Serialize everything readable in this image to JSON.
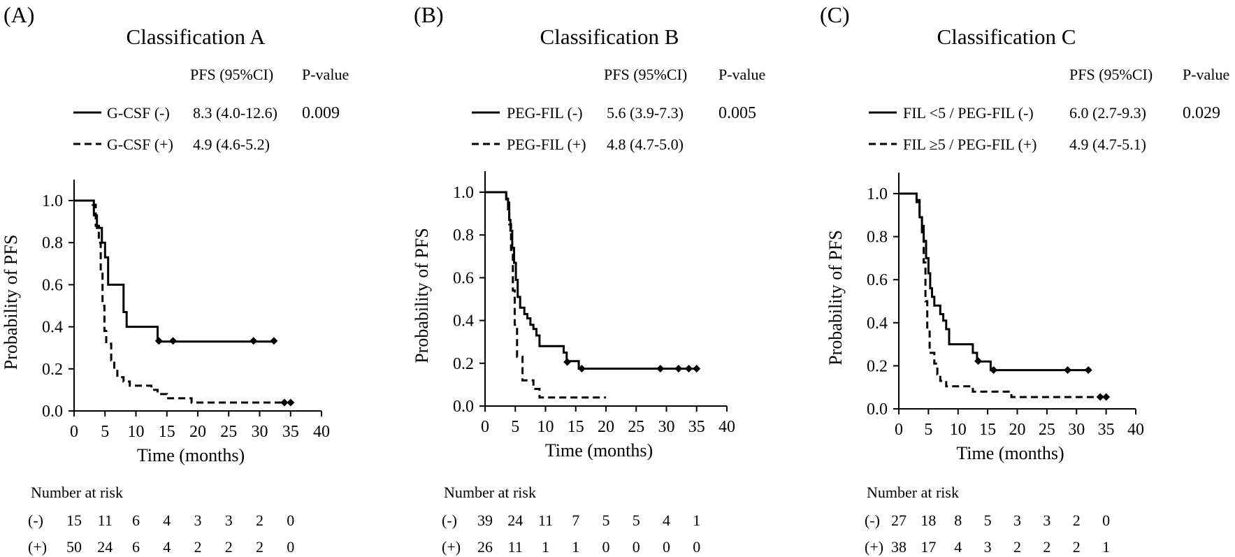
{
  "panels": [
    {
      "panel_label": "(A)",
      "title": "Classification A",
      "header_pfs": "PFS (95%CI)",
      "header_p": "P-value",
      "legend_rows": [
        {
          "label": "G-CSF (-)",
          "pfs": "8.3 (4.0-12.6)",
          "p": "0.009",
          "style": "solid"
        },
        {
          "label": "G-CSF (+)",
          "pfs": "4.9 (4.6-5.2)",
          "p": "",
          "style": "dashed"
        }
      ],
      "risk": {
        "title": "Number at risk",
        "rows": [
          {
            "label": "(-)",
            "values": [
              "15",
              "11",
              "6",
              "4",
              "3",
              "3",
              "2",
              "0"
            ]
          },
          {
            "label": "(+)",
            "values": [
              "50",
              "24",
              "6",
              "4",
              "2",
              "2",
              "2",
              "0"
            ]
          }
        ]
      }
    },
    {
      "panel_label": "(B)",
      "title": "Classification B",
      "header_pfs": "PFS (95%CI)",
      "header_p": "P-value",
      "legend_rows": [
        {
          "label": "PEG-FIL (-)",
          "pfs": "5.6 (3.9-7.3)",
          "p": "0.005",
          "style": "solid"
        },
        {
          "label": "PEG-FIL (+)",
          "pfs": "4.8 (4.7-5.0)",
          "p": "",
          "style": "dashed"
        }
      ],
      "risk": {
        "title": "Number at risk",
        "rows": [
          {
            "label": "(-)",
            "values": [
              "39",
              "24",
              "11",
              "7",
              "5",
              "5",
              "4",
              "1"
            ]
          },
          {
            "label": "(+)",
            "values": [
              "26",
              "11",
              "1",
              "1",
              "0",
              "0",
              "0",
              "0"
            ]
          }
        ]
      }
    },
    {
      "panel_label": "(C)",
      "title": "Classification C",
      "header_pfs": "PFS (95%CI)",
      "header_p": "P-value",
      "legend_rows": [
        {
          "label": "FIL <5 / PEG-FIL (-)",
          "pfs": "6.0 (2.7-9.3)",
          "p": "0.029",
          "style": "solid"
        },
        {
          "label": "FIL ≥5 / PEG-FIL (+)",
          "pfs": "4.9 (4.7-5.1)",
          "p": "",
          "style": "dashed"
        }
      ],
      "risk": {
        "title": "Number at risk",
        "rows": [
          {
            "label": "(-)",
            "values": [
              "27",
              "18",
              "8",
              "5",
              "3",
              "3",
              "2",
              "0"
            ]
          },
          {
            "label": "(+)",
            "values": [
              "38",
              "17",
              "4",
              "3",
              "2",
              "2",
              "2",
              "1"
            ]
          }
        ]
      }
    }
  ],
  "chart_data": [
    {
      "type": "line",
      "title": "Classification A",
      "xlabel": "Time (months)",
      "ylabel": "Probability of PFS",
      "xlim": [
        0,
        40
      ],
      "ylim": [
        0,
        1.0
      ],
      "x_ticks": [
        "0",
        "5",
        "10",
        "15",
        "20",
        "25",
        "30",
        "35",
        "40"
      ],
      "y_ticks": [
        "0.0",
        "0.2",
        "0.4",
        "0.6",
        "0.8",
        "1.0"
      ],
      "grid": false,
      "series": [
        {
          "name": "G-CSF (-)",
          "style": "solid",
          "points": [
            [
              0,
              1.0
            ],
            [
              3.2,
              1.0
            ],
            [
              3.2,
              0.93
            ],
            [
              3.7,
              0.93
            ],
            [
              3.7,
              0.87
            ],
            [
              4.5,
              0.87
            ],
            [
              4.5,
              0.8
            ],
            [
              5.0,
              0.8
            ],
            [
              5.0,
              0.73
            ],
            [
              5.5,
              0.73
            ],
            [
              5.5,
              0.6
            ],
            [
              8.0,
              0.6
            ],
            [
              8.0,
              0.47
            ],
            [
              8.5,
              0.47
            ],
            [
              8.5,
              0.4
            ],
            [
              13.5,
              0.4
            ],
            [
              13.5,
              0.33
            ],
            [
              32.3,
              0.33
            ]
          ],
          "censored": [
            [
              13.7,
              0.333
            ],
            [
              16.0,
              0.333
            ],
            [
              29.0,
              0.333
            ],
            [
              32.3,
              0.333
            ]
          ]
        },
        {
          "name": "G-CSF (+)",
          "style": "dashed",
          "points": [
            [
              0,
              1.0
            ],
            [
              3.0,
              1.0
            ],
            [
              3.0,
              0.98
            ],
            [
              3.5,
              0.98
            ],
            [
              3.5,
              0.88
            ],
            [
              4.0,
              0.88
            ],
            [
              4.0,
              0.8
            ],
            [
              4.3,
              0.8
            ],
            [
              4.3,
              0.66
            ],
            [
              4.6,
              0.66
            ],
            [
              4.6,
              0.5
            ],
            [
              4.9,
              0.5
            ],
            [
              4.9,
              0.38
            ],
            [
              5.2,
              0.38
            ],
            [
              5.2,
              0.32
            ],
            [
              6.0,
              0.32
            ],
            [
              6.0,
              0.24
            ],
            [
              6.5,
              0.24
            ],
            [
              6.5,
              0.2
            ],
            [
              7.0,
              0.2
            ],
            [
              7.0,
              0.16
            ],
            [
              8.0,
              0.16
            ],
            [
              8.0,
              0.14
            ],
            [
              9.0,
              0.14
            ],
            [
              9.0,
              0.12
            ],
            [
              12.5,
              0.12
            ],
            [
              12.5,
              0.1
            ],
            [
              13.5,
              0.1
            ],
            [
              13.5,
              0.08
            ],
            [
              15.0,
              0.08
            ],
            [
              15.0,
              0.06
            ],
            [
              19.0,
              0.06
            ],
            [
              19.0,
              0.04
            ],
            [
              34.0,
              0.04
            ]
          ],
          "censored": [
            [
              34.0,
              0.04
            ],
            [
              35.0,
              0.04
            ]
          ]
        }
      ]
    },
    {
      "type": "line",
      "title": "Classification B",
      "xlabel": "Time (months)",
      "ylabel": "Probability of PFS",
      "xlim": [
        0,
        40
      ],
      "ylim": [
        0,
        1.0
      ],
      "x_ticks": [
        "0",
        "5",
        "10",
        "15",
        "20",
        "25",
        "30",
        "35",
        "40"
      ],
      "y_ticks": [
        "0.0",
        "0.2",
        "0.4",
        "0.6",
        "0.8",
        "1.0"
      ],
      "grid": false,
      "series": [
        {
          "name": "PEG-FIL (-)",
          "style": "solid",
          "points": [
            [
              0,
              1.0
            ],
            [
              3.5,
              1.0
            ],
            [
              3.5,
              0.97
            ],
            [
              3.8,
              0.97
            ],
            [
              3.8,
              0.92
            ],
            [
              4.0,
              0.92
            ],
            [
              4.0,
              0.87
            ],
            [
              4.2,
              0.87
            ],
            [
              4.2,
              0.82
            ],
            [
              4.5,
              0.82
            ],
            [
              4.5,
              0.74
            ],
            [
              4.8,
              0.74
            ],
            [
              4.8,
              0.67
            ],
            [
              5.1,
              0.67
            ],
            [
              5.1,
              0.59
            ],
            [
              5.4,
              0.59
            ],
            [
              5.4,
              0.51
            ],
            [
              5.8,
              0.51
            ],
            [
              5.8,
              0.46
            ],
            [
              6.5,
              0.46
            ],
            [
              6.5,
              0.43
            ],
            [
              7.0,
              0.43
            ],
            [
              7.0,
              0.41
            ],
            [
              7.5,
              0.41
            ],
            [
              7.5,
              0.38
            ],
            [
              8.0,
              0.38
            ],
            [
              8.0,
              0.36
            ],
            [
              8.5,
              0.36
            ],
            [
              8.5,
              0.33
            ],
            [
              9.0,
              0.33
            ],
            [
              9.0,
              0.28
            ],
            [
              13.0,
              0.28
            ],
            [
              13.0,
              0.25
            ],
            [
              13.5,
              0.25
            ],
            [
              13.5,
              0.21
            ],
            [
              15.5,
              0.21
            ],
            [
              15.5,
              0.175
            ],
            [
              35.0,
              0.175
            ]
          ],
          "censored": [
            [
              13.6,
              0.206
            ],
            [
              16.0,
              0.175
            ],
            [
              29.0,
              0.175
            ],
            [
              32.0,
              0.175
            ],
            [
              33.7,
              0.175
            ],
            [
              35.0,
              0.175
            ]
          ]
        },
        {
          "name": "PEG-FIL (+)",
          "style": "dashed",
          "points": [
            [
              0,
              1.0
            ],
            [
              3.5,
              1.0
            ],
            [
              3.5,
              0.96
            ],
            [
              4.0,
              0.96
            ],
            [
              4.0,
              0.85
            ],
            [
              4.3,
              0.85
            ],
            [
              4.3,
              0.73
            ],
            [
              4.6,
              0.73
            ],
            [
              4.6,
              0.54
            ],
            [
              4.9,
              0.54
            ],
            [
              4.9,
              0.38
            ],
            [
              5.3,
              0.38
            ],
            [
              5.3,
              0.23
            ],
            [
              6.2,
              0.23
            ],
            [
              6.2,
              0.12
            ],
            [
              8.0,
              0.12
            ],
            [
              8.0,
              0.08
            ],
            [
              9.0,
              0.08
            ],
            [
              9.0,
              0.04
            ],
            [
              20.0,
              0.04
            ]
          ],
          "censored": []
        }
      ]
    },
    {
      "type": "line",
      "title": "Classification C",
      "xlabel": "Time (months)",
      "ylabel": "Probability of PFS",
      "xlim": [
        0,
        40
      ],
      "ylim": [
        0,
        1.0
      ],
      "x_ticks": [
        "0",
        "5",
        "10",
        "15",
        "20",
        "25",
        "30",
        "35",
        "40"
      ],
      "y_ticks": [
        "0.0",
        "0.2",
        "0.4",
        "0.6",
        "0.8",
        "1.0"
      ],
      "grid": false,
      "series": [
        {
          "name": "FIL <5 / PEG-FIL (-)",
          "style": "solid",
          "points": [
            [
              0,
              1.0
            ],
            [
              3.0,
              1.0
            ],
            [
              3.0,
              0.96
            ],
            [
              3.5,
              0.96
            ],
            [
              3.5,
              0.89
            ],
            [
              3.9,
              0.89
            ],
            [
              3.9,
              0.85
            ],
            [
              4.2,
              0.85
            ],
            [
              4.2,
              0.78
            ],
            [
              4.6,
              0.78
            ],
            [
              4.6,
              0.7
            ],
            [
              5.0,
              0.7
            ],
            [
              5.0,
              0.63
            ],
            [
              5.3,
              0.63
            ],
            [
              5.3,
              0.56
            ],
            [
              5.6,
              0.56
            ],
            [
              5.6,
              0.52
            ],
            [
              6.0,
              0.52
            ],
            [
              6.0,
              0.48
            ],
            [
              7.0,
              0.48
            ],
            [
              7.0,
              0.44
            ],
            [
              7.5,
              0.44
            ],
            [
              7.5,
              0.41
            ],
            [
              8.0,
              0.41
            ],
            [
              8.0,
              0.37
            ],
            [
              8.5,
              0.37
            ],
            [
              8.5,
              0.3
            ],
            [
              12.5,
              0.3
            ],
            [
              12.5,
              0.26
            ],
            [
              13.2,
              0.26
            ],
            [
              13.2,
              0.22
            ],
            [
              15.5,
              0.22
            ],
            [
              15.5,
              0.18
            ],
            [
              32.0,
              0.18
            ]
          ],
          "censored": [
            [
              13.4,
              0.222
            ],
            [
              16.0,
              0.18
            ],
            [
              28.5,
              0.18
            ],
            [
              32.0,
              0.18
            ]
          ]
        },
        {
          "name": "FIL ≥5 / PEG-FIL (+)",
          "style": "dashed",
          "points": [
            [
              0,
              1.0
            ],
            [
              3.0,
              1.0
            ],
            [
              3.0,
              0.97
            ],
            [
              3.5,
              0.97
            ],
            [
              3.5,
              0.89
            ],
            [
              3.9,
              0.89
            ],
            [
              3.9,
              0.82
            ],
            [
              4.2,
              0.82
            ],
            [
              4.2,
              0.68
            ],
            [
              4.5,
              0.68
            ],
            [
              4.5,
              0.5
            ],
            [
              4.8,
              0.5
            ],
            [
              4.8,
              0.37
            ],
            [
              5.2,
              0.37
            ],
            [
              5.2,
              0.26
            ],
            [
              6.0,
              0.26
            ],
            [
              6.0,
              0.21
            ],
            [
              6.5,
              0.21
            ],
            [
              6.5,
              0.16
            ],
            [
              7.0,
              0.16
            ],
            [
              7.0,
              0.13
            ],
            [
              8.0,
              0.13
            ],
            [
              8.0,
              0.105
            ],
            [
              12.5,
              0.105
            ],
            [
              12.5,
              0.08
            ],
            [
              19.0,
              0.08
            ],
            [
              19.0,
              0.055
            ],
            [
              34.0,
              0.055
            ]
          ],
          "censored": [
            [
              34.0,
              0.055
            ],
            [
              35.0,
              0.055
            ]
          ]
        }
      ]
    }
  ]
}
